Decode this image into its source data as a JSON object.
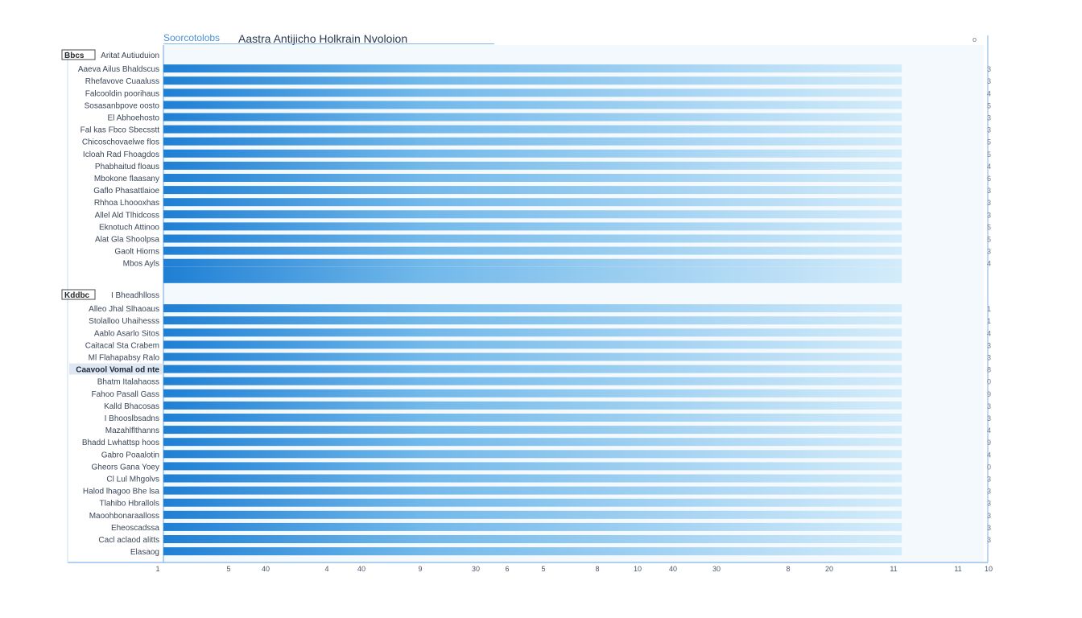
{
  "tab_label": "Soorcotolobs",
  "chart_data": {
    "type": "bar",
    "orientation": "horizontal",
    "title": "Aastra Antijicho Holkrain Nvoloion",
    "corner_mark": "o",
    "groups": [
      {
        "header": "Bbcs",
        "header_detail": "Aritat Autiuduion",
        "items": [
          {
            "label": "Aaeva Ailus Bhaldscus",
            "value": 0.9,
            "end_label": "3"
          },
          {
            "label": "Rhefavove Cuaaluss",
            "value": 0.9,
            "end_label": "3"
          },
          {
            "label": "Falcooldin poorihaus",
            "value": 0.9,
            "end_label": "4"
          },
          {
            "label": "Sosasanbpove oosto",
            "value": 0.9,
            "end_label": "5"
          },
          {
            "label": "El Abhoehosto",
            "value": 0.9,
            "end_label": "3"
          },
          {
            "label": "Fal kas Fbco Sbecsstt",
            "value": 0.9,
            "end_label": "3"
          },
          {
            "label": "Chicoschovaelwe flos",
            "value": 0.9,
            "end_label": "5"
          },
          {
            "label": "Icloah Rad Fhoagdos",
            "value": 0.9,
            "end_label": "5"
          },
          {
            "label": "Phabhaitud floaus",
            "value": 0.9,
            "end_label": "4"
          },
          {
            "label": "Mbokone flaasany",
            "value": 0.9,
            "end_label": "6"
          },
          {
            "label": "Gaflo Phasattlaioe",
            "value": 0.9,
            "end_label": "3"
          },
          {
            "label": "Rhhoa Lhoooxhas",
            "value": 0.9,
            "end_label": "3"
          },
          {
            "label": "Allel Ald Tlhidcoss",
            "value": 0.9,
            "end_label": "3"
          },
          {
            "label": "Eknotuch Attinoo",
            "value": 0.9,
            "end_label": "5"
          },
          {
            "label": "Alat Gla Shoolpsa",
            "value": 0.9,
            "end_label": "5"
          },
          {
            "label": "Gaolt Hiorns",
            "value": 0.9,
            "end_label": "3"
          },
          {
            "label": "Mbos Ayls",
            "value": 0.9,
            "end_label": "4"
          },
          {
            "label": "",
            "value": 0.9,
            "end_label": ""
          }
        ]
      },
      {
        "header": "Kddbc",
        "header_detail": "I Bheadhlloss",
        "items": [
          {
            "label": "Alleo Jhal Slhaoaus",
            "value": 0.9,
            "end_label": "1"
          },
          {
            "label": "Stolalloo Uhaihesss",
            "value": 0.9,
            "end_label": "1"
          },
          {
            "label": "Aablo Asarlo Sitos",
            "value": 0.9,
            "end_label": "4"
          },
          {
            "label": "Caitacal Sta Crabem",
            "value": 0.9,
            "end_label": "3"
          },
          {
            "label": "Ml Flahapabsy Ralo",
            "value": 0.9,
            "end_label": "3"
          },
          {
            "label": "Caavool Vomal od nte",
            "value": 0.9,
            "end_label": "8",
            "highlight": true
          },
          {
            "label": "Bhatm Italahaoss",
            "value": 0.9,
            "end_label": "0"
          },
          {
            "label": "Fahoo Pasall Gass",
            "value": 0.9,
            "end_label": "9"
          },
          {
            "label": "Kalld Bhacosas",
            "value": 0.9,
            "end_label": "3"
          },
          {
            "label": "I Bhooslbsadns",
            "value": 0.9,
            "end_label": "3"
          },
          {
            "label": "Mazahlflthanns",
            "value": 0.9,
            "end_label": "4"
          },
          {
            "label": "Bhadd Lwhattsp hoos",
            "value": 0.9,
            "end_label": "9"
          },
          {
            "label": "Gabro Poaalotin",
            "value": 0.9,
            "end_label": "4"
          },
          {
            "label": "Gheors Gana Yoey",
            "value": 0.9,
            "end_label": "0"
          },
          {
            "label": "Cl Lul Mhgolvs",
            "value": 0.9,
            "end_label": "3"
          },
          {
            "label": "Halod lhagoo Bhe lsa",
            "value": 0.9,
            "end_label": "3"
          },
          {
            "label": "Tlahibo Hbrallols",
            "value": 0.9,
            "end_label": "3"
          },
          {
            "label": "Maoohbonaraalloss",
            "value": 0.9,
            "end_label": "3"
          },
          {
            "label": "Eheoscadssa",
            "value": 0.9,
            "end_label": "3"
          },
          {
            "label": "Cacl aclaod alitts",
            "value": 0.9,
            "end_label": "3"
          },
          {
            "label": "Elasaog",
            "value": 0.9,
            "end_label": ""
          }
        ]
      }
    ],
    "x_ticks": [
      "1",
      "5",
      "40",
      "4",
      "40",
      "9",
      "30",
      "6",
      "5",
      "8",
      "10",
      "40",
      "30",
      "8",
      "20",
      "11",
      "11",
      "10"
    ],
    "xlim": [
      0,
      1
    ],
    "colors": {
      "bar_start": "#1f7fd4",
      "bar_mid": "#71b8ea",
      "bar_end": "#d4ecfa",
      "axis": "#7fb3e6",
      "label": "#3a4658",
      "header_box": "#4a4a4a"
    }
  }
}
